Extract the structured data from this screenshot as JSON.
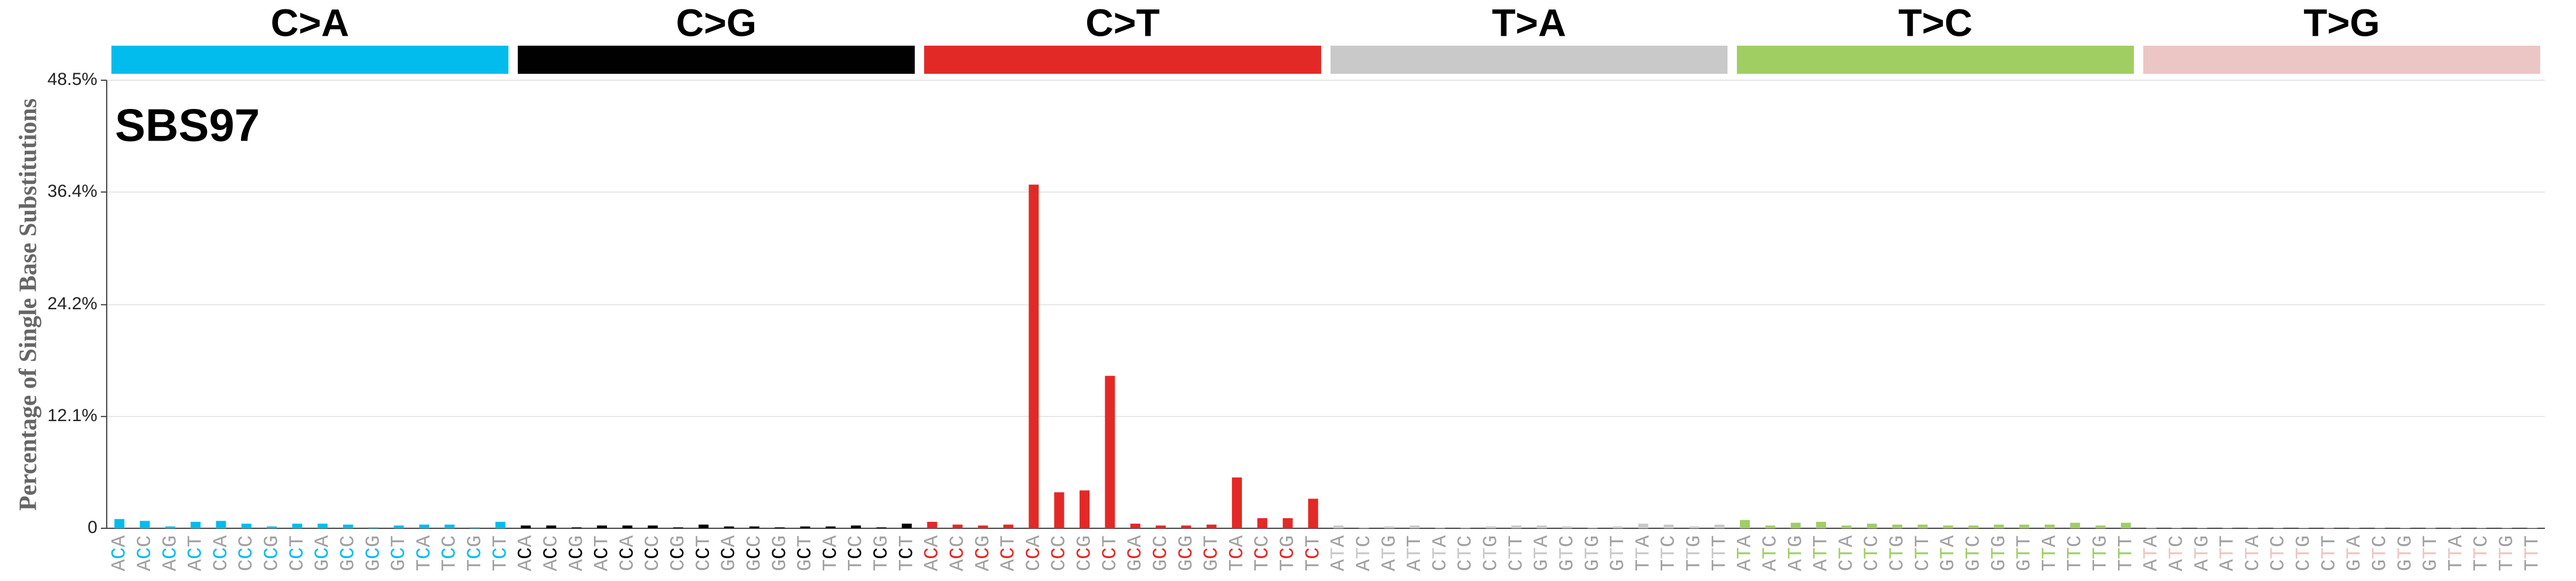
{
  "chart_data": {
    "type": "bar",
    "title": "SBS97",
    "y_label": "Percentage of Single Base Substitutions",
    "groups": [
      {
        "name": "C>A",
        "color": "#03bcee"
      },
      {
        "name": "C>G",
        "color": "#010101"
      },
      {
        "name": "C>T",
        "color": "#e32926"
      },
      {
        "name": "T>A",
        "color": "#cac9c9"
      },
      {
        "name": "T>C",
        "color": "#a1ce63"
      },
      {
        "name": "T>G",
        "color": "#ebc6c4"
      }
    ],
    "categories": [
      "ACA",
      "ACC",
      "ACG",
      "ACT",
      "CCA",
      "CCC",
      "CCG",
      "CCT",
      "GCA",
      "GCC",
      "GCG",
      "GCT",
      "TCA",
      "TCC",
      "TCG",
      "TCT",
      "ACA",
      "ACC",
      "ACG",
      "ACT",
      "CCA",
      "CCC",
      "CCG",
      "CCT",
      "GCA",
      "GCC",
      "GCG",
      "GCT",
      "TCA",
      "TCC",
      "TCG",
      "TCT",
      "ACA",
      "ACC",
      "ACG",
      "ACT",
      "CCA",
      "CCC",
      "CCG",
      "CCT",
      "GCA",
      "GCC",
      "GCG",
      "GCT",
      "TCA",
      "TCC",
      "TCG",
      "TCT",
      "ATA",
      "ATC",
      "ATG",
      "ATT",
      "CTA",
      "CTC",
      "CTG",
      "CTT",
      "GTA",
      "GTC",
      "GTG",
      "GTT",
      "TTA",
      "TTC",
      "TTG",
      "TTT",
      "ATA",
      "ATC",
      "ATG",
      "ATT",
      "CTA",
      "CTC",
      "CTG",
      "CTT",
      "GTA",
      "GTC",
      "GTG",
      "GTT",
      "TTA",
      "TTC",
      "TTG",
      "TTT",
      "ATA",
      "ATC",
      "ATG",
      "ATT",
      "CTA",
      "CTC",
      "CTG",
      "CTT",
      "GTA",
      "GTC",
      "GTG",
      "GTT",
      "TTA",
      "TTC",
      "TTG",
      "TTT"
    ],
    "values": [
      1.0,
      0.8,
      0.2,
      0.7,
      0.8,
      0.5,
      0.2,
      0.5,
      0.5,
      0.4,
      0.1,
      0.3,
      0.4,
      0.4,
      0.1,
      0.7,
      0.3,
      0.3,
      0.1,
      0.3,
      0.3,
      0.3,
      0.1,
      0.4,
      0.2,
      0.2,
      0.1,
      0.2,
      0.2,
      0.3,
      0.1,
      0.5,
      0.7,
      0.4,
      0.3,
      0.4,
      37.2,
      3.9,
      4.1,
      16.5,
      0.5,
      0.3,
      0.3,
      0.4,
      5.5,
      1.1,
      1.1,
      3.2,
      0.3,
      0.1,
      0.2,
      0.3,
      0.1,
      0.1,
      0.2,
      0.3,
      0.3,
      0.2,
      0.1,
      0.2,
      0.5,
      0.4,
      0.2,
      0.4,
      0.9,
      0.3,
      0.6,
      0.7,
      0.3,
      0.5,
      0.4,
      0.4,
      0.3,
      0.3,
      0.4,
      0.4,
      0.4,
      0.6,
      0.3,
      0.6,
      0.1,
      0.05,
      0.05,
      0.05,
      0.05,
      0.05,
      0.05,
      0.1,
      0.05,
      0.05,
      0.05,
      0.1,
      0.1,
      0.05,
      0.05,
      0.05
    ],
    "ylim": [
      0,
      48.5
    ],
    "yticks": [
      0,
      {
        "value": 12.1,
        "label": "12.1%"
      },
      {
        "value": 24.2,
        "label": "24.2%"
      },
      {
        "value": 36.4,
        "label": "36.4%"
      },
      {
        "value": 48.5,
        "label": "48.5%"
      }
    ],
    "grid": true
  }
}
